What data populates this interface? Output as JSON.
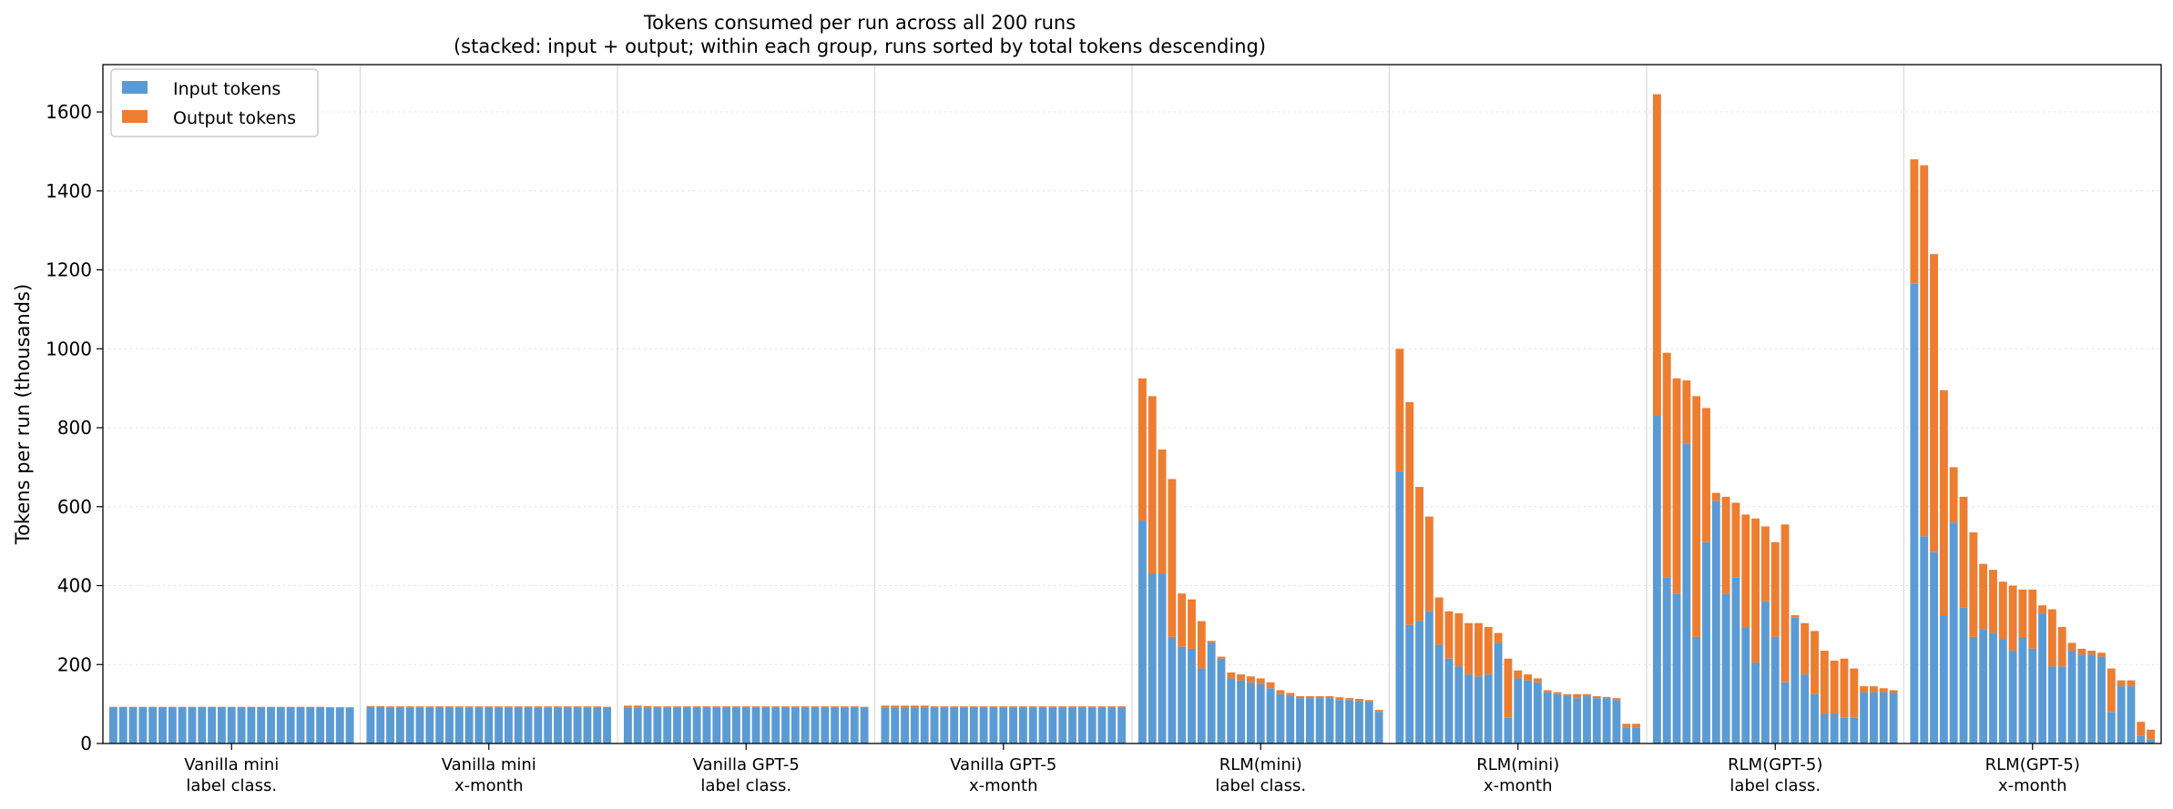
{
  "chart_data": {
    "type": "bar",
    "stacked": true,
    "title": "Tokens consumed per run across all 200 runs",
    "subtitle": "(stacked: input + output; within each group, runs sorted by total tokens descending)",
    "ylabel": "Tokens per run (thousands)",
    "xlabel": "",
    "ylim": [
      0,
      1720
    ],
    "yticks": [
      "0",
      "200",
      "400",
      "600",
      "800",
      "1000",
      "1200",
      "1400",
      "1600"
    ],
    "grid": "horizontal dotted",
    "legend_position": "top-left",
    "colors": {
      "input": "#5b9bd5",
      "output": "#ed7d31"
    },
    "series": [
      {
        "name": "Input tokens",
        "key": "input"
      },
      {
        "name": "Output tokens",
        "key": "output"
      }
    ],
    "groups": [
      {
        "label_line1": "Vanilla mini",
        "label_line2": "label class.",
        "input": [
          91,
          91,
          91,
          91,
          91,
          91,
          91,
          91,
          91,
          91,
          91,
          91,
          91,
          91,
          91,
          91,
          91,
          91,
          91,
          91,
          91,
          91,
          90,
          90,
          90
        ],
        "output": [
          2,
          2,
          2,
          2,
          2,
          2,
          2,
          2,
          2,
          2,
          2,
          2,
          2,
          2,
          2,
          2,
          2,
          2,
          2,
          2,
          2,
          2,
          2,
          2,
          2
        ]
      },
      {
        "label_line1": "Vanilla mini",
        "label_line2": "x-month",
        "input": [
          93,
          93,
          92,
          92,
          92,
          92,
          92,
          92,
          92,
          92,
          92,
          92,
          92,
          92,
          92,
          92,
          92,
          92,
          92,
          92,
          92,
          92,
          92,
          92,
          91
        ],
        "output": [
          2,
          2,
          2,
          2,
          2,
          2,
          2,
          2,
          2,
          2,
          2,
          2,
          2,
          2,
          2,
          2,
          2,
          2,
          2,
          2,
          2,
          2,
          2,
          2,
          2
        ]
      },
      {
        "label_line1": "Vanilla GPT-5",
        "label_line2": "label class.",
        "input": [
          92,
          92,
          92,
          91,
          91,
          91,
          91,
          91,
          91,
          91,
          91,
          91,
          91,
          91,
          91,
          91,
          91,
          91,
          91,
          91,
          91,
          91,
          91,
          91,
          90
        ],
        "output": [
          4,
          4,
          3,
          3,
          3,
          3,
          3,
          3,
          3,
          3,
          3,
          3,
          3,
          3,
          3,
          3,
          3,
          3,
          3,
          3,
          3,
          3,
          3,
          3,
          3
        ]
      },
      {
        "label_line1": "Vanilla GPT-5",
        "label_line2": "x-month",
        "input": [
          92,
          92,
          92,
          92,
          92,
          91,
          91,
          91,
          91,
          91,
          91,
          91,
          91,
          91,
          91,
          91,
          91,
          91,
          91,
          91,
          91,
          91,
          91,
          91,
          91
        ],
        "output": [
          4,
          4,
          4,
          4,
          4,
          3,
          3,
          3,
          3,
          3,
          3,
          3,
          3,
          3,
          3,
          3,
          3,
          3,
          3,
          3,
          3,
          3,
          3,
          3,
          3
        ]
      },
      {
        "label_line1": "RLM(mini)",
        "label_line2": "label class.",
        "input": [
          565,
          430,
          430,
          270,
          245,
          240,
          190,
          255,
          215,
          165,
          160,
          155,
          150,
          140,
          125,
          120,
          115,
          115,
          115,
          115,
          110,
          110,
          108,
          105,
          80
        ],
        "output": [
          360,
          450,
          315,
          400,
          135,
          125,
          120,
          5,
          5,
          15,
          15,
          15,
          15,
          15,
          10,
          8,
          5,
          5,
          5,
          5,
          7,
          5,
          5,
          5,
          5
        ]
      },
      {
        "label_line1": "RLM(mini)",
        "label_line2": "x-month",
        "input": [
          690,
          300,
          310,
          335,
          250,
          215,
          195,
          175,
          170,
          175,
          255,
          65,
          165,
          160,
          155,
          130,
          125,
          120,
          115,
          120,
          115,
          115,
          110,
          40,
          40
        ],
        "output": [
          310,
          565,
          340,
          240,
          120,
          120,
          135,
          130,
          135,
          120,
          25,
          150,
          20,
          15,
          10,
          5,
          5,
          5,
          10,
          5,
          5,
          3,
          5,
          10,
          10
        ]
      },
      {
        "label_line1": "RLM(GPT-5)",
        "label_line2": "label class.",
        "input": [
          830,
          420,
          380,
          760,
          270,
          510,
          615,
          380,
          420,
          295,
          205,
          360,
          270,
          155,
          320,
          175,
          125,
          75,
          75,
          65,
          65,
          130,
          130,
          130,
          128
        ],
        "output": [
          815,
          570,
          545,
          160,
          610,
          340,
          20,
          245,
          190,
          285,
          365,
          190,
          240,
          400,
          5,
          130,
          160,
          160,
          135,
          150,
          125,
          15,
          15,
          10,
          7
        ],
        "_note_removed": ""
      },
      {
        "label_line1": "RLM(GPT-5)",
        "label_line2": "x-month",
        "input": [
          1165,
          525,
          485,
          325,
          560,
          345,
          270,
          290,
          280,
          265,
          235,
          270,
          240,
          330,
          195,
          195,
          235,
          225,
          225,
          220,
          80,
          145,
          145,
          20,
          10
        ],
        "output": [
          315,
          940,
          755,
          570,
          140,
          280,
          265,
          165,
          160,
          145,
          165,
          120,
          150,
          20,
          145,
          100,
          20,
          15,
          10,
          10,
          110,
          15,
          15,
          35,
          25
        ]
      }
    ]
  }
}
